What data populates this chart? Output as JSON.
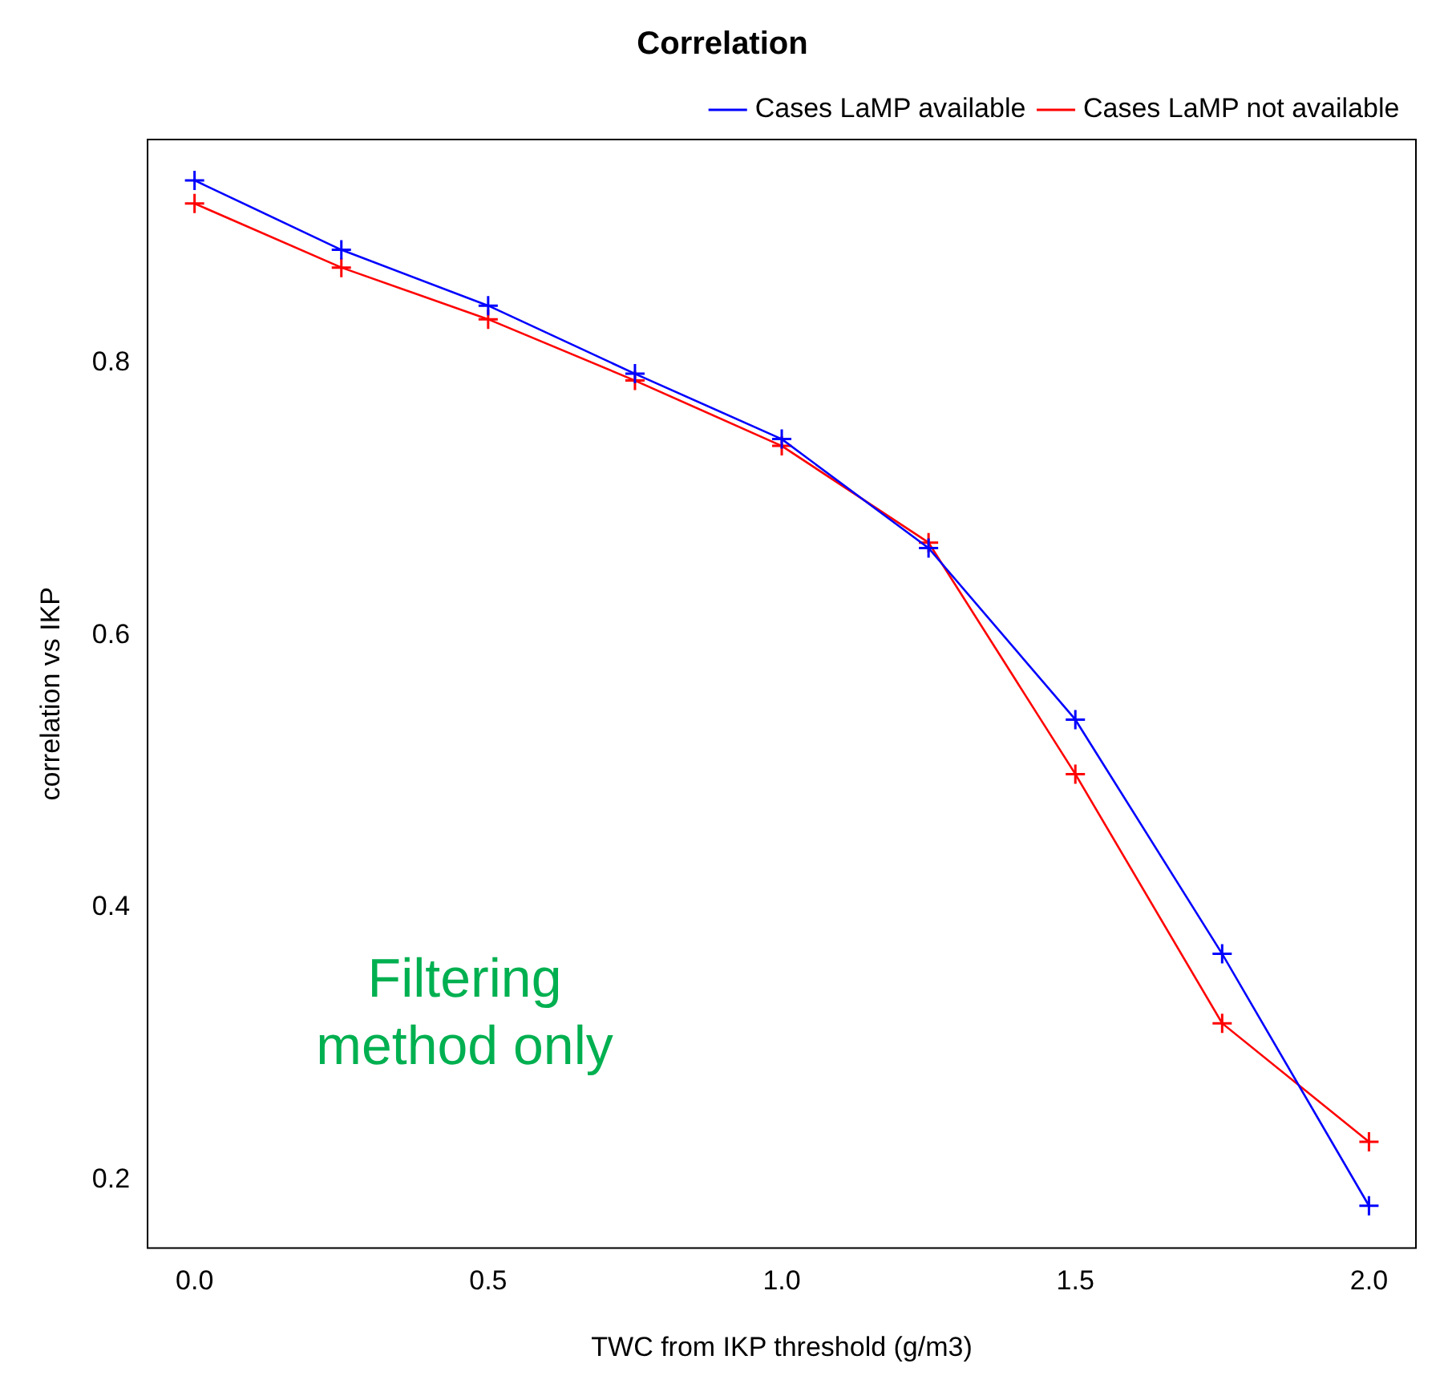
{
  "chart_data": {
    "type": "line",
    "title": "Correlation",
    "xlabel": "TWC from IKP threshold (g/m3)",
    "ylabel": "correlation vs IKP",
    "x": [
      0,
      0.25,
      0.5,
      0.75,
      1,
      1.25,
      1.5,
      1.75,
      2
    ],
    "series": [
      {
        "name": "Cases LaMP available",
        "color": "#0000ff",
        "values": [
          0.934,
          0.883,
          0.842,
          0.792,
          0.744,
          0.664,
          0.538,
          0.366,
          0.181
        ]
      },
      {
        "name": "Cases LaMP not available",
        "color": "#ff0000",
        "values": [
          0.917,
          0.87,
          0.832,
          0.787,
          0.739,
          0.668,
          0.498,
          0.315,
          0.228
        ]
      }
    ],
    "xlim": [
      -0.08,
      2.08
    ],
    "ylim": [
      0.15,
      0.964
    ],
    "xticks": [
      {
        "value": 0,
        "label": "0.0"
      },
      {
        "value": 0.5,
        "label": "0.5"
      },
      {
        "value": 1,
        "label": "1.0"
      },
      {
        "value": 1.5,
        "label": "1.5"
      },
      {
        "value": 2,
        "label": "2.0"
      }
    ],
    "yticks": [
      0.2,
      0.4,
      0.6,
      0.8
    ],
    "annotations": [
      "Filtering method only"
    ],
    "grid": false,
    "legend": "top right",
    "marker": "cross",
    "line_style": "solid"
  }
}
